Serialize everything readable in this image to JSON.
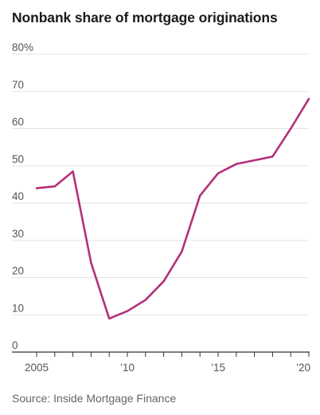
{
  "title": "Nonbank share of mortgage originations",
  "source": "Source: Inside Mortgage Finance",
  "colors": {
    "line": "#b3307a"
  },
  "chart_data": {
    "type": "line",
    "title": "Nonbank share of mortgage originations",
    "xlabel": "",
    "ylabel": "",
    "x": [
      2005,
      2006,
      2007,
      2008,
      2009,
      2010,
      2011,
      2012,
      2013,
      2014,
      2015,
      2016,
      2017,
      2018,
      2019,
      2020
    ],
    "series": [
      {
        "values": [
          44,
          44.5,
          48.5,
          24,
          9,
          11,
          14,
          19,
          27,
          42,
          48,
          50.5,
          51.5,
          52.5,
          60,
          68
        ]
      }
    ],
    "xlim": [
      2005,
      2020
    ],
    "ylim": [
      0,
      80
    ],
    "yticks": [
      0,
      10,
      20,
      30,
      40,
      50,
      60,
      70,
      80
    ],
    "ytick_labels": [
      "0",
      "10",
      "20",
      "30",
      "40",
      "50",
      "60",
      "70",
      "80%"
    ],
    "xticks": [
      2005,
      2010,
      2015,
      2020
    ],
    "xtick_labels": [
      "2005",
      "’10",
      "’15",
      "’20"
    ],
    "grid": true
  }
}
